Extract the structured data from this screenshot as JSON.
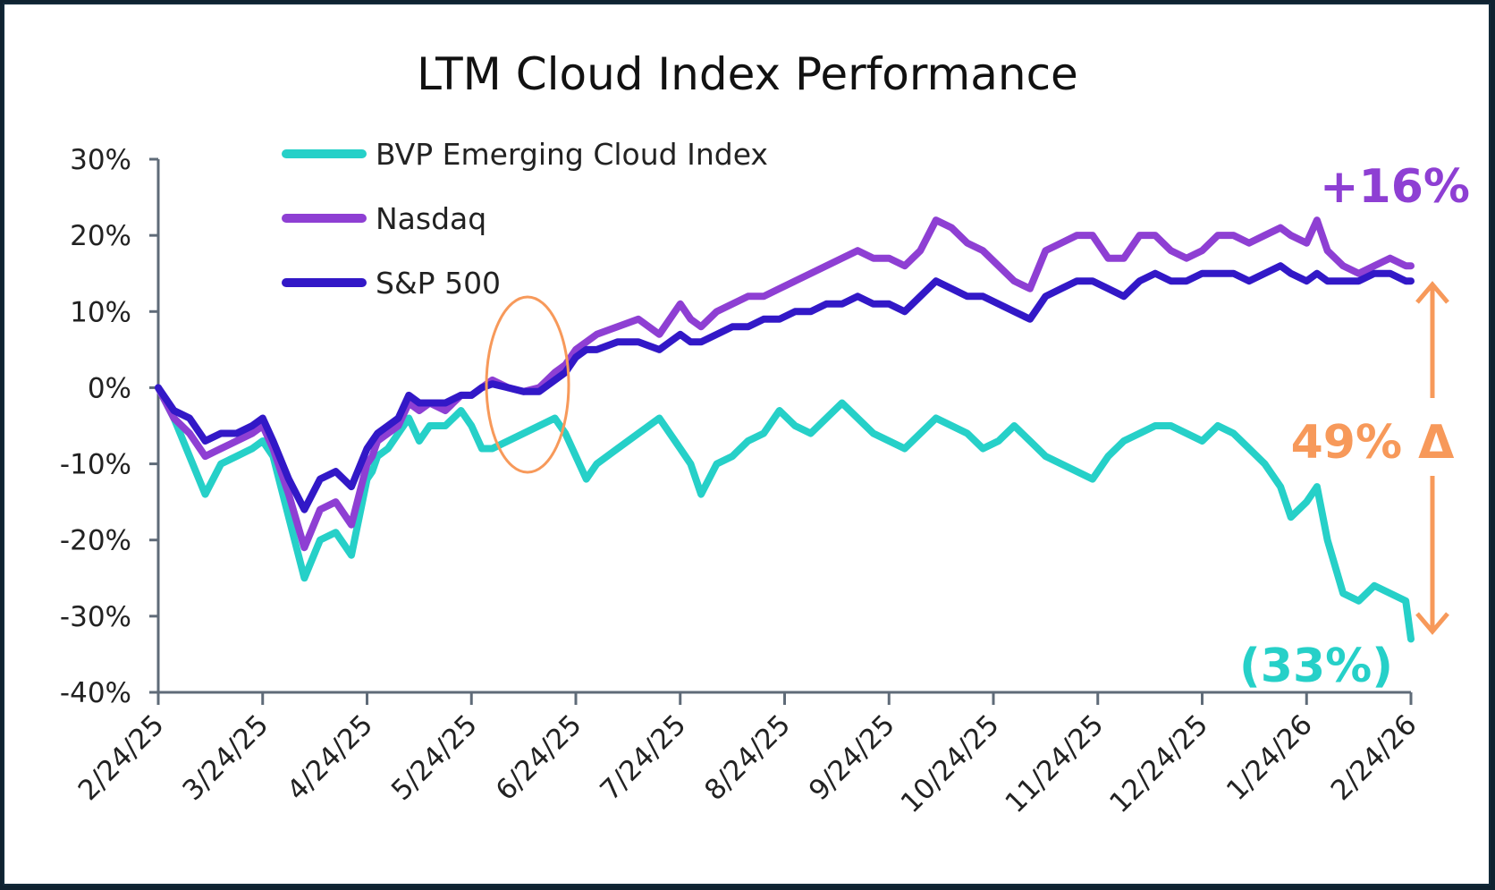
{
  "chart_data": {
    "type": "line",
    "title": "LTM Cloud Index Performance",
    "xlabel": "",
    "ylabel": "",
    "ylim": [
      -40,
      30
    ],
    "yticks": [
      "30%",
      "20%",
      "10%",
      "0%",
      "-10%",
      "-20%",
      "-30%",
      "-40%"
    ],
    "ytick_values": [
      30,
      20,
      10,
      0,
      -10,
      -20,
      -30,
      -40
    ],
    "xticks": [
      "2/24/25",
      "3/24/25",
      "4/24/25",
      "5/24/25",
      "6/24/25",
      "7/24/25",
      "8/24/25",
      "9/24/25",
      "10/24/25",
      "11/24/25",
      "12/24/25",
      "1/24/26",
      "2/24/26"
    ],
    "x_unit": "months since 2/24/25",
    "legend_position": "top-left",
    "grid": false,
    "series": [
      {
        "name": "BVP Emerging Cloud Index",
        "color": "#26d0c8",
        "x": [
          0,
          0.15,
          0.3,
          0.45,
          0.6,
          0.75,
          0.9,
          1.0,
          1.1,
          1.25,
          1.4,
          1.55,
          1.7,
          1.85,
          2.0,
          2.05,
          2.1,
          2.2,
          2.3,
          2.4,
          2.5,
          2.6,
          2.75,
          2.9,
          3.0,
          3.1,
          3.2,
          3.35,
          3.5,
          3.65,
          3.8,
          3.9,
          4.0,
          4.1,
          4.2,
          4.4,
          4.6,
          4.8,
          5.0,
          5.1,
          5.2,
          5.35,
          5.5,
          5.65,
          5.8,
          5.95,
          6.1,
          6.25,
          6.4,
          6.55,
          6.7,
          6.85,
          7.0,
          7.15,
          7.3,
          7.45,
          7.6,
          7.75,
          7.9,
          8.05,
          8.2,
          8.35,
          8.5,
          8.65,
          8.8,
          8.95,
          9.1,
          9.25,
          9.4,
          9.55,
          9.7,
          9.85,
          10.0,
          10.15,
          10.3,
          10.45,
          10.6,
          10.75,
          10.85,
          11.0,
          11.1,
          11.2,
          11.35,
          11.5,
          11.65,
          11.8,
          11.95,
          12.0
        ],
        "values": [
          0,
          -4,
          -9,
          -14,
          -10,
          -9,
          -8,
          -7,
          -9,
          -17,
          -25,
          -20,
          -19,
          -22,
          -12,
          -11,
          -9,
          -8,
          -6,
          -4,
          -7,
          -5,
          -5,
          -3,
          -5,
          -8,
          -8,
          -7,
          -6,
          -5,
          -4,
          -6,
          -9,
          -12,
          -10,
          -8,
          -6,
          -4,
          -8,
          -10,
          -14,
          -10,
          -9,
          -7,
          -6,
          -3,
          -5,
          -6,
          -4,
          -2,
          -4,
          -6,
          -7,
          -8,
          -6,
          -4,
          -5,
          -6,
          -8,
          -7,
          -5,
          -7,
          -9,
          -10,
          -11,
          -12,
          -9,
          -7,
          -6,
          -5,
          -5,
          -6,
          -7,
          -5,
          -6,
          -8,
          -10,
          -13,
          -17,
          -15,
          -13,
          -20,
          -27,
          -28,
          -26,
          -27,
          -28,
          -33
        ]
      },
      {
        "name": "Nasdaq",
        "color": "#8e3fd3",
        "x": [
          0,
          0.15,
          0.3,
          0.45,
          0.6,
          0.75,
          0.9,
          1.0,
          1.1,
          1.25,
          1.4,
          1.55,
          1.7,
          1.85,
          2.0,
          2.05,
          2.1,
          2.2,
          2.3,
          2.4,
          2.5,
          2.6,
          2.75,
          2.9,
          3.0,
          3.1,
          3.2,
          3.35,
          3.5,
          3.65,
          3.8,
          3.9,
          4.0,
          4.1,
          4.2,
          4.4,
          4.6,
          4.8,
          5.0,
          5.1,
          5.2,
          5.35,
          5.5,
          5.65,
          5.8,
          5.95,
          6.1,
          6.25,
          6.4,
          6.55,
          6.7,
          6.85,
          7.0,
          7.15,
          7.3,
          7.45,
          7.6,
          7.75,
          7.9,
          8.05,
          8.2,
          8.35,
          8.5,
          8.65,
          8.8,
          8.95,
          9.1,
          9.25,
          9.4,
          9.55,
          9.7,
          9.85,
          10.0,
          10.15,
          10.3,
          10.45,
          10.6,
          10.75,
          10.85,
          11.0,
          11.1,
          11.2,
          11.35,
          11.5,
          11.65,
          11.8,
          11.95,
          12.0
        ],
        "values": [
          0,
          -4,
          -6,
          -9,
          -8,
          -7,
          -6,
          -5,
          -8,
          -14,
          -21,
          -16,
          -15,
          -18,
          -10,
          -9,
          -7,
          -6,
          -5,
          -2,
          -3,
          -2,
          -3,
          -1,
          -1,
          0,
          1,
          0,
          -0.5,
          0,
          2,
          3,
          5,
          6,
          7,
          8,
          9,
          7,
          11,
          9,
          8,
          10,
          11,
          12,
          12,
          13,
          14,
          15,
          16,
          17,
          18,
          17,
          17,
          16,
          18,
          22,
          21,
          19,
          18,
          16,
          14,
          13,
          18,
          19,
          20,
          20,
          17,
          17,
          20,
          20,
          18,
          17,
          18,
          20,
          20,
          19,
          20,
          21,
          20,
          19,
          22,
          18,
          16,
          15,
          16,
          17,
          16,
          16
        ],
        "end_label": "+16%"
      },
      {
        "name": "S&P 500",
        "color": "#3218c7",
        "x": [
          0,
          0.15,
          0.3,
          0.45,
          0.6,
          0.75,
          0.9,
          1.0,
          1.1,
          1.25,
          1.4,
          1.55,
          1.7,
          1.85,
          2.0,
          2.05,
          2.1,
          2.2,
          2.3,
          2.4,
          2.5,
          2.6,
          2.75,
          2.9,
          3.0,
          3.1,
          3.2,
          3.35,
          3.5,
          3.65,
          3.8,
          3.9,
          4.0,
          4.1,
          4.2,
          4.4,
          4.6,
          4.8,
          5.0,
          5.1,
          5.2,
          5.35,
          5.5,
          5.65,
          5.8,
          5.95,
          6.1,
          6.25,
          6.4,
          6.55,
          6.7,
          6.85,
          7.0,
          7.15,
          7.3,
          7.45,
          7.6,
          7.75,
          7.9,
          8.05,
          8.2,
          8.35,
          8.5,
          8.65,
          8.8,
          8.95,
          9.1,
          9.25,
          9.4,
          9.55,
          9.7,
          9.85,
          10.0,
          10.15,
          10.3,
          10.45,
          10.6,
          10.75,
          10.85,
          11.0,
          11.1,
          11.2,
          11.35,
          11.5,
          11.65,
          11.8,
          11.95,
          12.0
        ],
        "values": [
          0,
          -3,
          -4,
          -7,
          -6,
          -6,
          -5,
          -4,
          -7,
          -12,
          -16,
          -12,
          -11,
          -13,
          -8,
          -7,
          -6,
          -5,
          -4,
          -1,
          -2,
          -2,
          -2,
          -1,
          -1,
          0,
          0.5,
          0,
          -0.5,
          -0.5,
          1,
          2,
          4,
          5,
          5,
          6,
          6,
          5,
          7,
          6,
          6,
          7,
          8,
          8,
          9,
          9,
          10,
          10,
          11,
          11,
          12,
          11,
          11,
          10,
          12,
          14,
          13,
          12,
          12,
          11,
          10,
          9,
          12,
          13,
          14,
          14,
          13,
          12,
          14,
          15,
          14,
          14,
          15,
          15,
          15,
          14,
          15,
          16,
          15,
          14,
          15,
          14,
          14,
          14,
          15,
          15,
          14,
          14
        ]
      }
    ],
    "annotations": [
      {
        "text": "+16%",
        "color": "#8e3fd3",
        "target": "Nasdaq end value"
      },
      {
        "text": "(33%)",
        "color": "#26d0c8",
        "target": "BVP Emerging Cloud Index end value"
      },
      {
        "text": "49% Δ",
        "color": "#f7995a",
        "target": "gap between Nasdaq and BVP at end, double-headed arrow"
      },
      {
        "text": "",
        "color": "#f7995a",
        "shape": "ellipse",
        "target": "highlight around 6/24/25 divergence"
      }
    ]
  }
}
